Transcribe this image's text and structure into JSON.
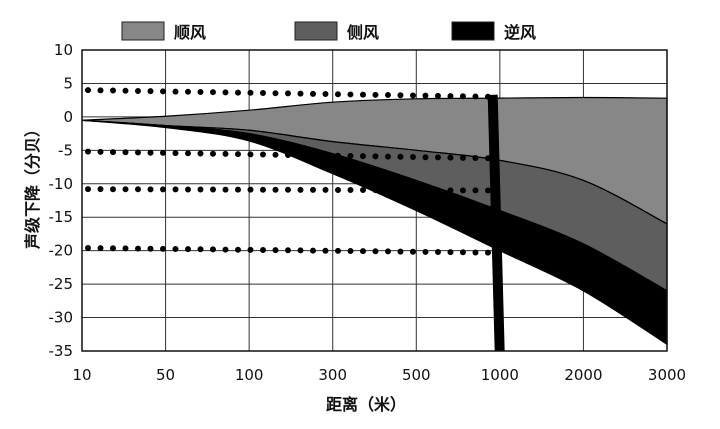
{
  "chart_data": {
    "type": "area",
    "xlabel": "距离（米）",
    "ylabel": "声级下降（分贝）",
    "x_ticks": [
      "10",
      "50",
      "100",
      "300",
      "500",
      "1000",
      "2000",
      "3000"
    ],
    "y_ticks": [
      10,
      5,
      0,
      -5,
      -10,
      -15,
      -20,
      -25,
      -30,
      -35
    ],
    "ylim": [
      -35,
      10
    ],
    "grid": true,
    "legend_position": "top",
    "legend": [
      {
        "name": "顺风",
        "color": "#878787"
      },
      {
        "name": "侧风",
        "color": "#5e5e5e"
      },
      {
        "name": "逆风",
        "color": "#000000"
      }
    ],
    "x_positions": [
      0,
      1,
      2,
      3,
      4,
      5,
      6,
      7
    ],
    "boundaries": {
      "top": [
        -0.5,
        0.1,
        1.0,
        2.2,
        2.7,
        2.8,
        2.9,
        2.8
      ],
      "line1": [
        -0.5,
        -1.3,
        -2.0,
        -3.7,
        -5.0,
        -6.5,
        -9.5,
        -16.0
      ],
      "line2": [
        -0.5,
        -1.3,
        -2.5,
        -5.5,
        -9.5,
        -14.0,
        -19.0,
        -26.0
      ],
      "bottom": [
        -0.5,
        -1.6,
        -3.6,
        -8.5,
        -14.0,
        -20.0,
        -26.0,
        -34.0
      ]
    },
    "dotted_lines": [
      {
        "y_start": 4.0,
        "y_end": 3.0,
        "x_end": 4.95
      },
      {
        "y_start": -5.2,
        "y_end": -6.2,
        "x_end": 4.95
      },
      {
        "y_start": -10.8,
        "y_end": -11.0,
        "x_end": 4.95
      },
      {
        "y_start": -19.6,
        "y_end": -20.3,
        "x_end": 4.95
      }
    ],
    "vertical_bar": {
      "x_top": 4.95,
      "y_top": 3.3,
      "x_bottom": 4.95,
      "y_bottom": -35
    }
  }
}
